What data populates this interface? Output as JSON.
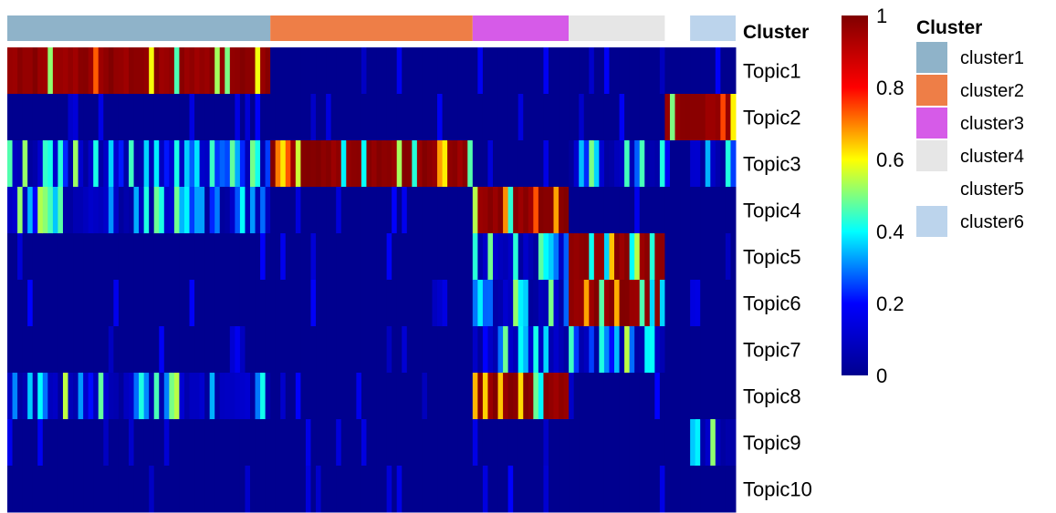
{
  "chart_data": {
    "type": "heatmap",
    "rows": [
      "Topic1",
      "Topic2",
      "Topic3",
      "Topic4",
      "Topic5",
      "Topic6",
      "Topic7",
      "Topic8",
      "Topic9",
      "Topic10"
    ],
    "annotation_title": "Cluster",
    "legend_title": "Cluster",
    "color_scale": {
      "min": 0,
      "max": 1,
      "ticks": [
        "0",
        "0.2",
        "0.4",
        "0.6",
        "0.8",
        "1"
      ],
      "tick_values": [
        0,
        0.2,
        0.4,
        0.6,
        0.8,
        1
      ],
      "colors": [
        "#00008f",
        "#0000ff",
        "#00ffff",
        "#ffff00",
        "#ff0000",
        "#800000"
      ]
    },
    "clusters": [
      {
        "label": "cluster1",
        "color": "#8fb3c9",
        "n_cells": 52
      },
      {
        "label": "cluster2",
        "color": "#ee7e47",
        "n_cells": 40
      },
      {
        "label": "cluster3",
        "color": "#d65be8",
        "n_cells": 19
      },
      {
        "label": "cluster4",
        "color": "#e6e6e6",
        "n_cells": 19
      },
      {
        "label": "cluster5",
        "color": "#ffffff",
        "n_cells": 5
      },
      {
        "label": "cluster6",
        "color": "#bcd4ec",
        "n_cells": 9
      }
    ],
    "cluster_patterns": {
      "cluster1": {
        "high": [
          "Topic1"
        ],
        "mid": [
          "Topic3",
          "Topic8",
          "Topic4"
        ]
      },
      "cluster2": {
        "high": [
          "Topic3"
        ]
      },
      "cluster3": {
        "high": [
          "Topic4",
          "Topic8"
        ],
        "mid": [
          "Topic5",
          "Topic6",
          "Topic7"
        ]
      },
      "cluster4": {
        "high": [
          "Topic5",
          "Topic6"
        ],
        "mid": [
          "Topic3",
          "Topic7"
        ]
      },
      "cluster5": {
        "high": [
          "Topic2"
        ]
      },
      "cluster6": {
        "high": [
          "Topic2"
        ],
        "mid": [
          "Topic9",
          "Topic3"
        ]
      }
    }
  }
}
